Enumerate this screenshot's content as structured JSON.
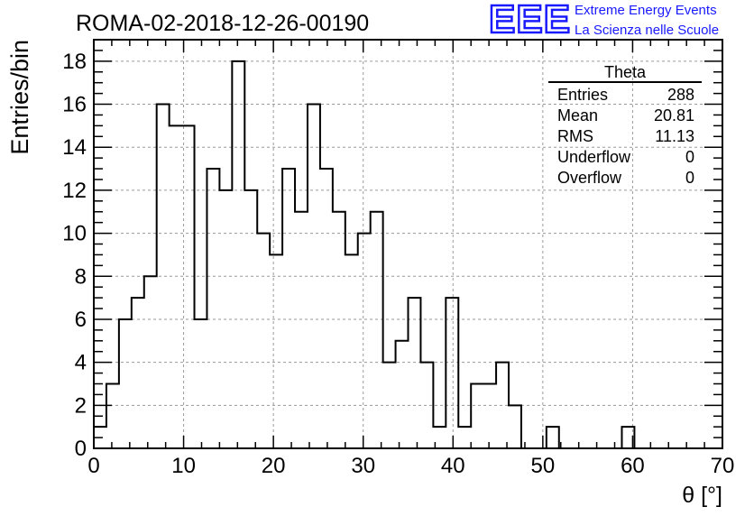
{
  "header": {
    "run_title": "ROMA-02-2018-12-26-00190"
  },
  "logo": {
    "mark": "EEE",
    "line1": "Extreme Energy Events",
    "line2": "La Scienza nelle Scuole",
    "color": "#1a1aff"
  },
  "stats": {
    "title": "Theta",
    "rows": [
      {
        "label": "Entries",
        "value": "288"
      },
      {
        "label": "Mean",
        "value": "20.81"
      },
      {
        "label": "RMS",
        "value": "11.13"
      },
      {
        "label": "Underflow",
        "value": "0"
      },
      {
        "label": "Overflow",
        "value": "0"
      }
    ]
  },
  "chart_data": {
    "type": "bar",
    "subtype": "step-histogram",
    "xlabel": "θ [°]",
    "ylabel": "Entries/bin",
    "xlim": [
      0,
      70
    ],
    "ylim": [
      0,
      19
    ],
    "x_ticks": [
      0,
      10,
      20,
      30,
      40,
      50,
      60,
      70
    ],
    "y_ticks": [
      0,
      2,
      4,
      6,
      8,
      10,
      12,
      14,
      16,
      18
    ],
    "grid": true,
    "bin_edges": [
      0,
      1.4,
      2.8,
      4.2,
      5.6,
      7.0,
      8.4,
      9.8,
      11.2,
      12.6,
      14.0,
      15.4,
      16.8,
      18.2,
      19.6,
      21.0,
      22.4,
      23.8,
      25.2,
      26.6,
      28.0,
      29.4,
      30.8,
      32.2,
      33.6,
      35.0,
      36.4,
      37.8,
      39.2,
      40.6,
      42.0,
      43.4,
      44.8,
      46.2,
      47.6,
      49.0,
      50.4,
      51.8,
      53.2,
      54.6,
      56.0,
      57.4,
      58.8,
      60.2
    ],
    "values": [
      1,
      3,
      6,
      7,
      8,
      16,
      15,
      15,
      6,
      13,
      12,
      18,
      12,
      10,
      9,
      13,
      11,
      16,
      13,
      11,
      9,
      10,
      11,
      4,
      5,
      7,
      4,
      1,
      7,
      1,
      3,
      3,
      4,
      2,
      0,
      0,
      1,
      0,
      0,
      0,
      0,
      0,
      1
    ]
  }
}
